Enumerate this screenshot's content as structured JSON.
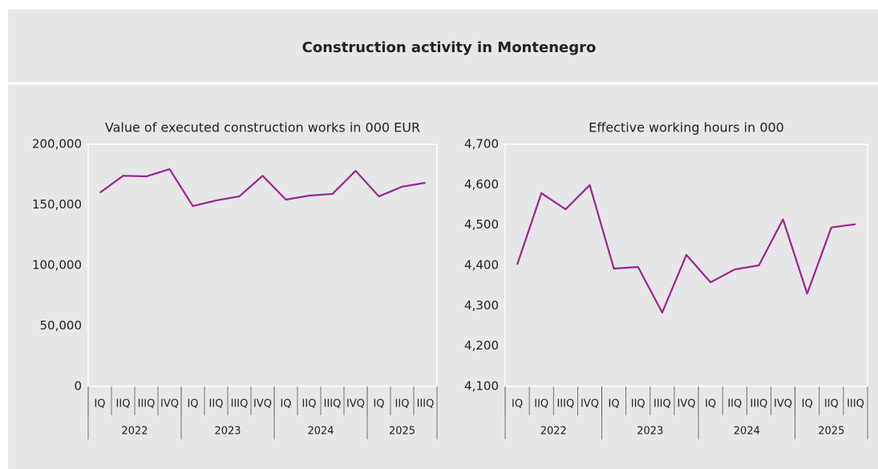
{
  "title": "Construction activity in Montenegro",
  "chart_data": [
    {
      "type": "line",
      "title": "Value of executed construction works in 000 EUR",
      "categories": [
        "IQ",
        "IIQ",
        "IIIQ",
        "IVQ",
        "IQ",
        "IIQ",
        "IIIQ",
        "IVQ",
        "IQ",
        "IIQ",
        "IIIQ",
        "IVQ",
        "IQ",
        "IIQ",
        "IIIQ"
      ],
      "groups": [
        "2022",
        "2023",
        "2024",
        "2025"
      ],
      "series": [
        {
          "color": "#a0228f",
          "values": [
            160000,
            174000,
            173500,
            179500,
            149000,
            153600,
            157000,
            174000,
            154300,
            157600,
            159000,
            178100,
            157000,
            165000,
            168200
          ]
        }
      ],
      "ylim": [
        0,
        200000
      ],
      "yticks": [
        {
          "value": 0,
          "label": "0"
        },
        {
          "value": 50000,
          "label": "50,000"
        },
        {
          "value": 100000,
          "label": "100,000"
        },
        {
          "value": 150000,
          "label": "150,000"
        },
        {
          "value": 200000,
          "label": "200,000"
        }
      ]
    },
    {
      "type": "line",
      "title": "Effective working hours in 000",
      "categories": [
        "IQ",
        "IIQ",
        "IIIQ",
        "IVQ",
        "IQ",
        "IIQ",
        "IIIQ",
        "IVQ",
        "IQ",
        "IIQ",
        "IIIQ",
        "IVQ",
        "IQ",
        "IIQ",
        "IIIQ"
      ],
      "groups": [
        "2022",
        "2023",
        "2024",
        "2025"
      ],
      "series": [
        {
          "color": "#a0228f",
          "values": [
            4402,
            4579,
            4539,
            4599,
            4392,
            4396,
            4283,
            4426,
            4358,
            4390,
            4400,
            4514,
            4330,
            4494,
            4502
          ]
        }
      ],
      "ylim": [
        4100,
        4700
      ],
      "yticks": [
        {
          "value": 4100,
          "label": "4,100"
        },
        {
          "value": 4200,
          "label": "4,200"
        },
        {
          "value": 4300,
          "label": "4,300"
        },
        {
          "value": 4400,
          "label": "4,400"
        },
        {
          "value": 4500,
          "label": "4,500"
        },
        {
          "value": 4600,
          "label": "4,600"
        },
        {
          "value": 4700,
          "label": "4,700"
        }
      ]
    }
  ]
}
